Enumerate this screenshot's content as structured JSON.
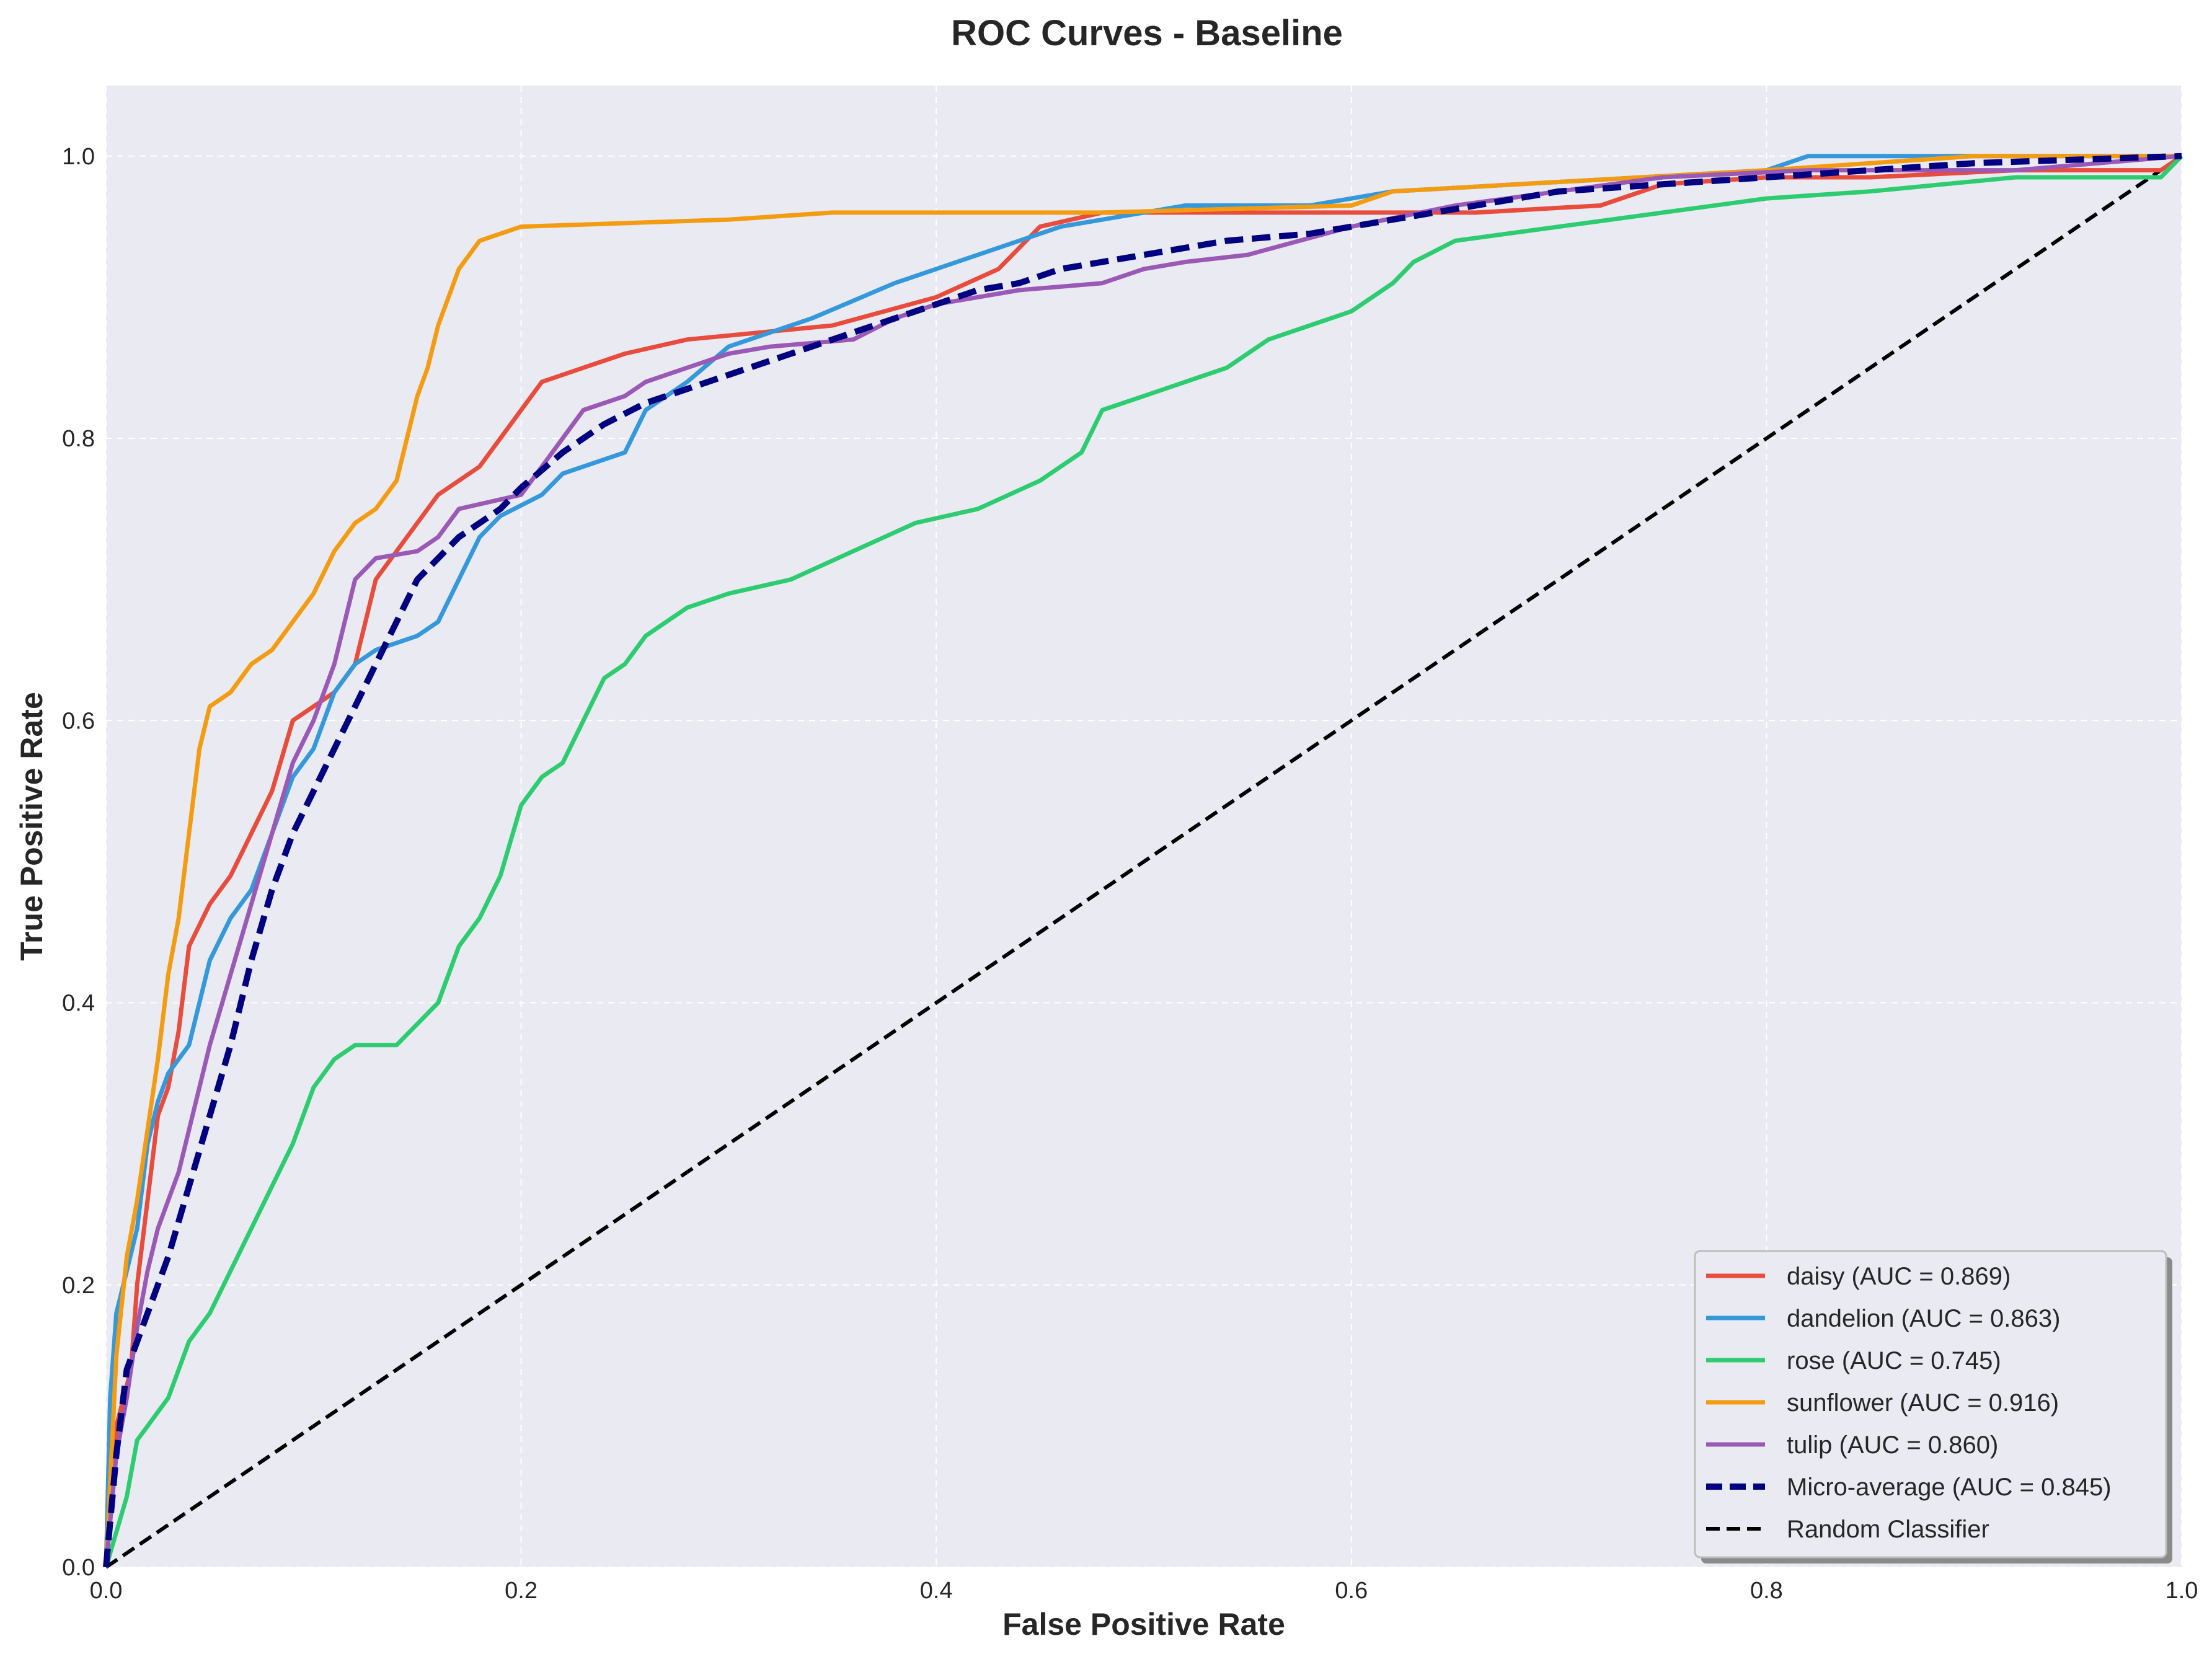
{
  "chart_data": {
    "type": "line",
    "title": "ROC Curves - Baseline",
    "xlabel": "False Positive Rate",
    "ylabel": "True Positive Rate",
    "xlim": [
      0.0,
      1.0
    ],
    "ylim": [
      0.0,
      1.05
    ],
    "xticks": [
      0.0,
      0.2,
      0.4,
      0.6,
      0.8,
      1.0
    ],
    "yticks": [
      0.0,
      0.2,
      0.4,
      0.6,
      0.8,
      1.0
    ],
    "xtick_labels": [
      "0.0",
      "0.2",
      "0.4",
      "0.6",
      "0.8",
      "1.0"
    ],
    "ytick_labels": [
      "0.0",
      "0.2",
      "0.4",
      "0.6",
      "0.8",
      "1.0"
    ],
    "grid": true,
    "legend_position": "lower-right",
    "colors": {
      "background": "#eaeaf2",
      "grid": "#ffffff",
      "text": "#262626"
    },
    "series": [
      {
        "name": "daisy (AUC = 0.869)",
        "color": "#e74c3c",
        "style": "solid",
        "points": [
          [
            0,
            0
          ],
          [
            0.005,
            0.1
          ],
          [
            0.012,
            0.14
          ],
          [
            0.015,
            0.2
          ],
          [
            0.02,
            0.26
          ],
          [
            0.025,
            0.32
          ],
          [
            0.03,
            0.34
          ],
          [
            0.035,
            0.38
          ],
          [
            0.04,
            0.44
          ],
          [
            0.05,
            0.47
          ],
          [
            0.06,
            0.49
          ],
          [
            0.07,
            0.52
          ],
          [
            0.08,
            0.55
          ],
          [
            0.09,
            0.6
          ],
          [
            0.11,
            0.62
          ],
          [
            0.12,
            0.64
          ],
          [
            0.13,
            0.7
          ],
          [
            0.14,
            0.72
          ],
          [
            0.16,
            0.76
          ],
          [
            0.18,
            0.78
          ],
          [
            0.19,
            0.8
          ],
          [
            0.2,
            0.82
          ],
          [
            0.21,
            0.84
          ],
          [
            0.23,
            0.85
          ],
          [
            0.25,
            0.86
          ],
          [
            0.28,
            0.87
          ],
          [
            0.35,
            0.88
          ],
          [
            0.4,
            0.9
          ],
          [
            0.43,
            0.92
          ],
          [
            0.45,
            0.95
          ],
          [
            0.48,
            0.96
          ],
          [
            0.6,
            0.96
          ],
          [
            0.66,
            0.96
          ],
          [
            0.72,
            0.965
          ],
          [
            0.75,
            0.98
          ],
          [
            0.8,
            0.985
          ],
          [
            0.85,
            0.985
          ],
          [
            0.92,
            0.99
          ],
          [
            0.99,
            0.99
          ],
          [
            1,
            1
          ]
        ]
      },
      {
        "name": "dandelion (AUC = 0.863)",
        "color": "#3498db",
        "style": "solid",
        "points": [
          [
            0,
            0
          ],
          [
            0.002,
            0.12
          ],
          [
            0.005,
            0.18
          ],
          [
            0.01,
            0.21
          ],
          [
            0.015,
            0.24
          ],
          [
            0.02,
            0.3
          ],
          [
            0.025,
            0.33
          ],
          [
            0.03,
            0.35
          ],
          [
            0.04,
            0.37
          ],
          [
            0.05,
            0.43
          ],
          [
            0.06,
            0.46
          ],
          [
            0.07,
            0.48
          ],
          [
            0.08,
            0.52
          ],
          [
            0.09,
            0.56
          ],
          [
            0.1,
            0.58
          ],
          [
            0.11,
            0.62
          ],
          [
            0.12,
            0.64
          ],
          [
            0.13,
            0.65
          ],
          [
            0.15,
            0.66
          ],
          [
            0.16,
            0.67
          ],
          [
            0.17,
            0.7
          ],
          [
            0.18,
            0.73
          ],
          [
            0.19,
            0.745
          ],
          [
            0.21,
            0.76
          ],
          [
            0.22,
            0.775
          ],
          [
            0.25,
            0.79
          ],
          [
            0.26,
            0.82
          ],
          [
            0.28,
            0.84
          ],
          [
            0.3,
            0.865
          ],
          [
            0.34,
            0.885
          ],
          [
            0.38,
            0.91
          ],
          [
            0.4,
            0.92
          ],
          [
            0.42,
            0.93
          ],
          [
            0.46,
            0.95
          ],
          [
            0.5,
            0.96
          ],
          [
            0.52,
            0.965
          ],
          [
            0.58,
            0.965
          ],
          [
            0.62,
            0.975
          ],
          [
            0.68,
            0.98
          ],
          [
            0.8,
            0.99
          ],
          [
            0.82,
            1.0
          ],
          [
            1,
            1
          ]
        ]
      },
      {
        "name": "rose (AUC = 0.745)",
        "color": "#2ecc71",
        "style": "solid",
        "points": [
          [
            0,
            0
          ],
          [
            0.01,
            0.05
          ],
          [
            0.015,
            0.09
          ],
          [
            0.02,
            0.1
          ],
          [
            0.025,
            0.11
          ],
          [
            0.03,
            0.12
          ],
          [
            0.035,
            0.14
          ],
          [
            0.04,
            0.16
          ],
          [
            0.05,
            0.18
          ],
          [
            0.06,
            0.21
          ],
          [
            0.07,
            0.24
          ],
          [
            0.08,
            0.27
          ],
          [
            0.09,
            0.3
          ],
          [
            0.1,
            0.34
          ],
          [
            0.11,
            0.36
          ],
          [
            0.12,
            0.37
          ],
          [
            0.14,
            0.37
          ],
          [
            0.16,
            0.4
          ],
          [
            0.17,
            0.44
          ],
          [
            0.18,
            0.46
          ],
          [
            0.19,
            0.49
          ],
          [
            0.2,
            0.54
          ],
          [
            0.21,
            0.56
          ],
          [
            0.22,
            0.57
          ],
          [
            0.23,
            0.6
          ],
          [
            0.24,
            0.63
          ],
          [
            0.25,
            0.64
          ],
          [
            0.26,
            0.66
          ],
          [
            0.28,
            0.68
          ],
          [
            0.3,
            0.69
          ],
          [
            0.33,
            0.7
          ],
          [
            0.36,
            0.72
          ],
          [
            0.39,
            0.74
          ],
          [
            0.42,
            0.75
          ],
          [
            0.45,
            0.77
          ],
          [
            0.47,
            0.79
          ],
          [
            0.48,
            0.82
          ],
          [
            0.5,
            0.83
          ],
          [
            0.52,
            0.84
          ],
          [
            0.54,
            0.85
          ],
          [
            0.56,
            0.87
          ],
          [
            0.58,
            0.88
          ],
          [
            0.6,
            0.89
          ],
          [
            0.62,
            0.91
          ],
          [
            0.63,
            0.925
          ],
          [
            0.65,
            0.94
          ],
          [
            0.7,
            0.95
          ],
          [
            0.75,
            0.96
          ],
          [
            0.8,
            0.97
          ],
          [
            0.85,
            0.975
          ],
          [
            0.92,
            0.985
          ],
          [
            0.99,
            0.985
          ],
          [
            1,
            1
          ]
        ]
      },
      {
        "name": "sunflower (AUC = 0.916)",
        "color": "#f39c12",
        "style": "solid",
        "points": [
          [
            0,
            0
          ],
          [
            0.005,
            0.15
          ],
          [
            0.01,
            0.22
          ],
          [
            0.015,
            0.26
          ],
          [
            0.02,
            0.31
          ],
          [
            0.025,
            0.36
          ],
          [
            0.03,
            0.42
          ],
          [
            0.035,
            0.46
          ],
          [
            0.04,
            0.52
          ],
          [
            0.045,
            0.58
          ],
          [
            0.05,
            0.61
          ],
          [
            0.06,
            0.62
          ],
          [
            0.065,
            0.63
          ],
          [
            0.07,
            0.64
          ],
          [
            0.08,
            0.65
          ],
          [
            0.09,
            0.67
          ],
          [
            0.1,
            0.69
          ],
          [
            0.11,
            0.72
          ],
          [
            0.12,
            0.74
          ],
          [
            0.13,
            0.75
          ],
          [
            0.14,
            0.77
          ],
          [
            0.145,
            0.8
          ],
          [
            0.15,
            0.83
          ],
          [
            0.155,
            0.85
          ],
          [
            0.16,
            0.88
          ],
          [
            0.17,
            0.92
          ],
          [
            0.18,
            0.94
          ],
          [
            0.19,
            0.945
          ],
          [
            0.2,
            0.95
          ],
          [
            0.3,
            0.955
          ],
          [
            0.35,
            0.96
          ],
          [
            0.48,
            0.96
          ],
          [
            0.6,
            0.965
          ],
          [
            0.62,
            0.975
          ],
          [
            0.8,
            0.99
          ],
          [
            0.9,
            1.0
          ],
          [
            1,
            1
          ]
        ]
      },
      {
        "name": "tulip (AUC = 0.860)",
        "color": "#9b59b6",
        "style": "solid",
        "points": [
          [
            0,
            0
          ],
          [
            0.005,
            0.08
          ],
          [
            0.01,
            0.12
          ],
          [
            0.015,
            0.17
          ],
          [
            0.02,
            0.21
          ],
          [
            0.025,
            0.24
          ],
          [
            0.03,
            0.26
          ],
          [
            0.035,
            0.28
          ],
          [
            0.04,
            0.31
          ],
          [
            0.05,
            0.37
          ],
          [
            0.06,
            0.42
          ],
          [
            0.07,
            0.47
          ],
          [
            0.08,
            0.52
          ],
          [
            0.09,
            0.57
          ],
          [
            0.1,
            0.6
          ],
          [
            0.11,
            0.64
          ],
          [
            0.12,
            0.7
          ],
          [
            0.13,
            0.715
          ],
          [
            0.15,
            0.72
          ],
          [
            0.16,
            0.73
          ],
          [
            0.17,
            0.75
          ],
          [
            0.2,
            0.76
          ],
          [
            0.21,
            0.78
          ],
          [
            0.22,
            0.8
          ],
          [
            0.23,
            0.82
          ],
          [
            0.25,
            0.83
          ],
          [
            0.26,
            0.84
          ],
          [
            0.28,
            0.85
          ],
          [
            0.3,
            0.86
          ],
          [
            0.32,
            0.865
          ],
          [
            0.36,
            0.87
          ],
          [
            0.38,
            0.885
          ],
          [
            0.4,
            0.895
          ],
          [
            0.44,
            0.905
          ],
          [
            0.48,
            0.91
          ],
          [
            0.5,
            0.92
          ],
          [
            0.52,
            0.925
          ],
          [
            0.55,
            0.93
          ],
          [
            0.6,
            0.95
          ],
          [
            0.65,
            0.965
          ],
          [
            0.7,
            0.975
          ],
          [
            0.75,
            0.985
          ],
          [
            0.82,
            0.99
          ],
          [
            0.92,
            0.99
          ],
          [
            1,
            1
          ]
        ]
      },
      {
        "name": "Micro-average (AUC = 0.845)",
        "color": "#000080",
        "style": "dashed",
        "points": [
          [
            0,
            0
          ],
          [
            0.005,
            0.08
          ],
          [
            0.01,
            0.14
          ],
          [
            0.02,
            0.18
          ],
          [
            0.03,
            0.22
          ],
          [
            0.04,
            0.27
          ],
          [
            0.05,
            0.32
          ],
          [
            0.06,
            0.37
          ],
          [
            0.07,
            0.43
          ],
          [
            0.08,
            0.48
          ],
          [
            0.09,
            0.52
          ],
          [
            0.1,
            0.55
          ],
          [
            0.11,
            0.58
          ],
          [
            0.12,
            0.61
          ],
          [
            0.13,
            0.64
          ],
          [
            0.14,
            0.67
          ],
          [
            0.15,
            0.7
          ],
          [
            0.17,
            0.73
          ],
          [
            0.19,
            0.75
          ],
          [
            0.2,
            0.765
          ],
          [
            0.22,
            0.79
          ],
          [
            0.24,
            0.81
          ],
          [
            0.26,
            0.825
          ],
          [
            0.28,
            0.835
          ],
          [
            0.3,
            0.845
          ],
          [
            0.32,
            0.855
          ],
          [
            0.34,
            0.865
          ],
          [
            0.36,
            0.875
          ],
          [
            0.38,
            0.885
          ],
          [
            0.4,
            0.895
          ],
          [
            0.42,
            0.905
          ],
          [
            0.44,
            0.91
          ],
          [
            0.46,
            0.92
          ],
          [
            0.48,
            0.925
          ],
          [
            0.5,
            0.93
          ],
          [
            0.54,
            0.94
          ],
          [
            0.58,
            0.945
          ],
          [
            0.62,
            0.955
          ],
          [
            0.66,
            0.965
          ],
          [
            0.7,
            0.975
          ],
          [
            0.75,
            0.98
          ],
          [
            0.8,
            0.985
          ],
          [
            0.85,
            0.99
          ],
          [
            0.9,
            0.995
          ],
          [
            1,
            1
          ]
        ]
      },
      {
        "name": "Random Classifier",
        "color": "#000000",
        "style": "dashed",
        "points": [
          [
            0,
            0
          ],
          [
            1,
            1
          ]
        ]
      }
    ]
  }
}
